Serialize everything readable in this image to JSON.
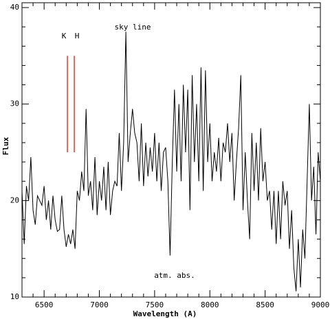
{
  "chart_data": {
    "type": "line",
    "xlabel": "Wavelength (A)",
    "ylabel": "Flux",
    "color": "#000000",
    "xlim": [
      6300,
      9000
    ],
    "ylim": [
      10,
      40.5
    ],
    "xticks": [
      6500,
      7000,
      7500,
      8000,
      8500,
      9000
    ],
    "yticks": [
      10,
      20,
      30,
      40
    ],
    "xminorticks": [
      6400,
      6600,
      6700,
      6800,
      6900,
      7100,
      7200,
      7300,
      7400,
      7600,
      7700,
      7800,
      7900,
      8100,
      8200,
      8300,
      8400,
      8600,
      8700,
      8800,
      8900
    ],
    "yminorticks": [
      12,
      14,
      16,
      18,
      22,
      24,
      26,
      28,
      32,
      34,
      36,
      38
    ],
    "x": [
      6300,
      6320,
      6340,
      6360,
      6380,
      6400,
      6420,
      6440,
      6460,
      6480,
      6500,
      6520,
      6540,
      6560,
      6580,
      6600,
      6620,
      6640,
      6660,
      6680,
      6700,
      6720,
      6740,
      6760,
      6780,
      6800,
      6820,
      6840,
      6860,
      6880,
      6900,
      6920,
      6940,
      6960,
      6980,
      7000,
      7020,
      7040,
      7060,
      7080,
      7100,
      7120,
      7140,
      7160,
      7180,
      7200,
      7220,
      7240,
      7260,
      7280,
      7300,
      7320,
      7340,
      7360,
      7380,
      7400,
      7420,
      7440,
      7460,
      7480,
      7500,
      7520,
      7540,
      7560,
      7580,
      7600,
      7620,
      7640,
      7660,
      7680,
      7700,
      7720,
      7740,
      7760,
      7780,
      7800,
      7820,
      7840,
      7860,
      7880,
      7900,
      7920,
      7940,
      7960,
      7980,
      8000,
      8020,
      8040,
      8060,
      8080,
      8100,
      8120,
      8140,
      8160,
      8180,
      8200,
      8220,
      8240,
      8260,
      8280,
      8300,
      8320,
      8340,
      8360,
      8380,
      8400,
      8420,
      8440,
      8460,
      8480,
      8500,
      8520,
      8540,
      8560,
      8580,
      8600,
      8620,
      8640,
      8660,
      8680,
      8700,
      8720,
      8740,
      8760,
      8780,
      8800,
      8820,
      8840,
      8860,
      8880,
      8900,
      8920,
      8940,
      8960,
      8980,
      9000
    ],
    "values": [
      21,
      15.5,
      21.5,
      20,
      24.5,
      19,
      17.5,
      20.5,
      20,
      19.5,
      21.5,
      18,
      20,
      17,
      20.5,
      18,
      16.8,
      17,
      20.5,
      17,
      15.2,
      16.5,
      15.5,
      17,
      15,
      21,
      20,
      23,
      21,
      29.5,
      20.5,
      22,
      19,
      24.5,
      18.5,
      22,
      20,
      23.5,
      19,
      24,
      18.5,
      21,
      22,
      21.5,
      27,
      21,
      26,
      37.5,
      24,
      27,
      29.5,
      27,
      26,
      22,
      28,
      21.5,
      26,
      22.5,
      25.5,
      23,
      27,
      22,
      26,
      21,
      25,
      25.5,
      22,
      14.3,
      24,
      31.5,
      23,
      30,
      22,
      32,
      25,
      31.5,
      19,
      33,
      24,
      30,
      22,
      33.8,
      21,
      33.5,
      24,
      28,
      22,
      25,
      23,
      26.5,
      22,
      26,
      25,
      28,
      24,
      27,
      20,
      24,
      27.5,
      33,
      19,
      25,
      20,
      16,
      27,
      21,
      26,
      20,
      27.5,
      22,
      24,
      20,
      21,
      17,
      21,
      15.5,
      21,
      16,
      22,
      19.5,
      21,
      15,
      19,
      13,
      10.6,
      16,
      11,
      17,
      14,
      22,
      30,
      20,
      23.5,
      16.5,
      25,
      22
    ],
    "markers": [
      {
        "label": "K",
        "x": 6711,
        "y": [
          25,
          35
        ],
        "color": "#e8392a"
      },
      {
        "label": "H",
        "x": 6773,
        "y": [
          25,
          35
        ],
        "color": "#e8392a"
      }
    ],
    "annotations": [
      "sky line",
      "atm. abs."
    ]
  }
}
